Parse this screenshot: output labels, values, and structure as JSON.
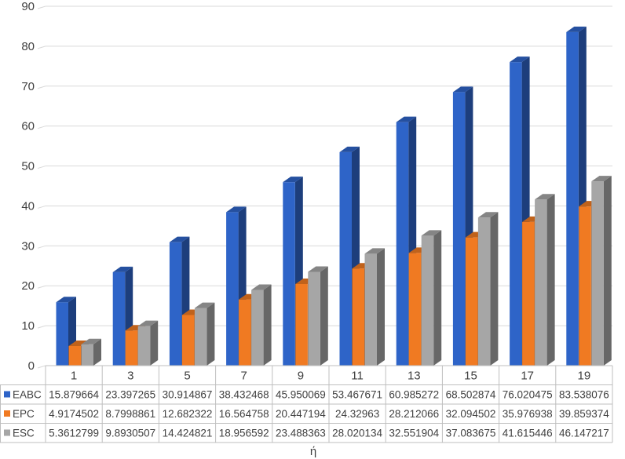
{
  "chart_data": {
    "type": "bar",
    "style": "3d-clustered-column-with-data-table",
    "categories": [
      "1",
      "3",
      "5",
      "7",
      "9",
      "11",
      "13",
      "15",
      "17",
      "19"
    ],
    "series": [
      {
        "name": "EABC",
        "color": "#2e64c8",
        "values": [
          15.879664,
          23.397265,
          30.914867,
          38.432468,
          45.950069,
          53.467671,
          60.985272,
          68.502874,
          76.020475,
          83.538076
        ],
        "labels": [
          "15.879664",
          "23.397265",
          "30.914867",
          "38.432468",
          "45.950069",
          "53.467671",
          "60.985272",
          "68.502874",
          "76.020475",
          "83.538076"
        ]
      },
      {
        "name": "EPC",
        "color": "#f07a22",
        "values": [
          4.9174502,
          8.7998861,
          12.682322,
          16.564758,
          20.447194,
          24.32963,
          28.212066,
          32.094502,
          35.976938,
          39.859374
        ],
        "labels": [
          "4.9174502",
          "8.7998861",
          "12.682322",
          "16.564758",
          "20.447194",
          "24.32963",
          "28.212066",
          "32.094502",
          "35.976938",
          "39.859374"
        ]
      },
      {
        "name": "ESC",
        "color": "#a6a6a6",
        "values": [
          5.3612799,
          9.8930507,
          14.424821,
          18.956592,
          23.488363,
          28.020134,
          32.551904,
          37.083675,
          41.615446,
          46.147217
        ],
        "labels": [
          "5.3612799",
          "9.8930507",
          "14.424821",
          "18.956592",
          "23.488363",
          "28.020134",
          "32.551904",
          "37.083675",
          "41.615446",
          "46.147217"
        ]
      }
    ],
    "xlabel": "ή",
    "ylabel": "",
    "ylim": [
      0,
      90
    ],
    "yticks": [
      0,
      10,
      20,
      30,
      40,
      50,
      60,
      70,
      80,
      90
    ],
    "grid": true,
    "legend": "data-table-left"
  }
}
